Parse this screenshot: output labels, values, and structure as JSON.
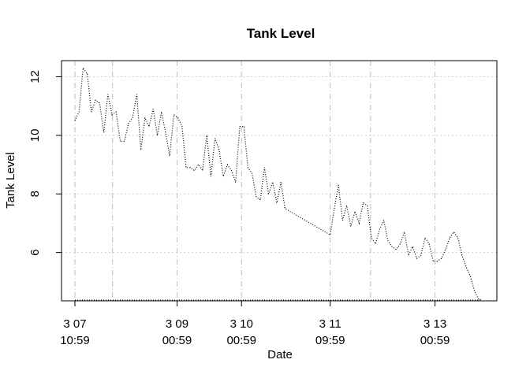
{
  "chart_data": {
    "type": "line",
    "title": "Tank Level",
    "xlabel": "Date",
    "ylabel": "Tank Level",
    "ylim": [
      4.35,
      12.55
    ],
    "xlim": [
      "2024-03-07 06:00",
      "2024-03-14 00:00"
    ],
    "y_ticks": [
      "6",
      "8",
      "10",
      "12"
    ],
    "x_ticks": [
      {
        "at": "2024-03-07 10:59",
        "line1": "3 07",
        "line2": "10:59"
      },
      {
        "at": "2024-03-09 00:59",
        "line1": "3 09",
        "line2": "00:59"
      },
      {
        "at": "2024-03-10 00:59",
        "line1": "3 10",
        "line2": "00:59"
      },
      {
        "at": "2024-03-11 09:59",
        "line1": "3 11",
        "line2": "09:59"
      },
      {
        "at": "2024-03-13 00:59",
        "line1": "3 13",
        "line2": "00:59"
      }
    ],
    "grid": {
      "horizontal": true,
      "vertical": true
    },
    "series": [
      {
        "line_style": "dotted",
        "x": [
          "2024-03-07 10:59",
          "2024-03-07 12:31",
          "2024-03-07 14:03",
          "2024-03-07 15:35",
          "2024-03-07 17:07",
          "2024-03-07 18:39",
          "2024-03-07 20:11",
          "2024-03-07 21:43",
          "2024-03-07 23:15",
          "2024-03-08 00:47",
          "2024-03-08 02:19",
          "2024-03-08 03:51",
          "2024-03-08 05:23",
          "2024-03-08 06:55",
          "2024-03-08 08:27",
          "2024-03-08 09:59",
          "2024-03-08 11:31",
          "2024-03-08 13:03",
          "2024-03-08 14:35",
          "2024-03-08 16:07",
          "2024-03-08 17:39",
          "2024-03-08 19:11",
          "2024-03-08 20:43",
          "2024-03-08 22:15",
          "2024-03-08 23:47",
          "2024-03-09 01:19",
          "2024-03-09 02:51",
          "2024-03-09 04:23",
          "2024-03-09 05:55",
          "2024-03-09 07:27",
          "2024-03-09 08:59",
          "2024-03-09 10:31",
          "2024-03-09 12:03",
          "2024-03-09 13:35",
          "2024-03-09 15:07",
          "2024-03-09 16:39",
          "2024-03-09 18:11",
          "2024-03-09 19:43",
          "2024-03-09 21:15",
          "2024-03-09 22:47",
          "2024-03-10 00:19",
          "2024-03-10 01:51",
          "2024-03-10 03:23",
          "2024-03-10 04:55",
          "2024-03-10 06:27",
          "2024-03-10 07:59",
          "2024-03-10 09:31",
          "2024-03-10 11:03",
          "2024-03-10 12:35",
          "2024-03-10 14:07",
          "2024-03-10 15:39",
          "2024-03-10 17:11",
          "2024-03-11 09:59",
          "2024-03-11 11:31",
          "2024-03-11 13:03",
          "2024-03-11 14:35",
          "2024-03-11 16:07",
          "2024-03-11 17:39",
          "2024-03-11 19:11",
          "2024-03-11 20:43",
          "2024-03-11 22:15",
          "2024-03-11 23:47",
          "2024-03-12 01:19",
          "2024-03-12 02:51",
          "2024-03-12 04:23",
          "2024-03-12 05:55",
          "2024-03-12 07:27",
          "2024-03-12 08:59",
          "2024-03-12 10:31",
          "2024-03-12 12:03",
          "2024-03-12 13:35",
          "2024-03-12 15:07",
          "2024-03-12 16:39",
          "2024-03-12 18:11",
          "2024-03-12 19:43",
          "2024-03-12 21:15",
          "2024-03-12 22:47",
          "2024-03-13 00:19",
          "2024-03-13 01:51",
          "2024-03-13 03:23",
          "2024-03-13 04:55",
          "2024-03-13 06:27",
          "2024-03-13 07:59",
          "2024-03-13 09:31",
          "2024-03-13 11:03",
          "2024-03-13 12:35",
          "2024-03-13 14:07",
          "2024-03-13 15:39",
          "2024-03-13 17:11",
          "2024-03-13 17:59"
        ],
        "y": [
          10.5,
          10.8,
          12.3,
          12.1,
          10.8,
          11.2,
          11.1,
          10.1,
          11.4,
          10.7,
          10.8,
          9.8,
          9.8,
          10.4,
          10.6,
          11.4,
          9.5,
          10.6,
          10.3,
          10.9,
          10.0,
          10.8,
          10.1,
          9.3,
          10.7,
          10.6,
          10.3,
          8.9,
          8.9,
          8.8,
          9.0,
          8.8,
          10.0,
          8.6,
          9.9,
          9.5,
          8.6,
          9.0,
          8.8,
          8.4,
          10.3,
          10.3,
          8.9,
          8.7,
          7.9,
          7.8,
          8.9,
          8.0,
          8.4,
          7.7,
          8.4,
          7.5,
          6.6,
          7.5,
          8.3,
          7.1,
          7.6,
          6.9,
          7.4,
          7.0,
          7.7,
          7.6,
          6.5,
          6.3,
          6.8,
          7.1,
          6.4,
          6.2,
          6.1,
          6.3,
          6.7,
          5.9,
          6.2,
          5.8,
          5.9,
          6.5,
          6.3,
          5.7,
          5.7,
          5.8,
          6.1,
          6.5,
          6.7,
          6.5,
          5.9,
          5.5,
          5.2,
          4.7,
          4.4,
          4.4
        ]
      }
    ]
  }
}
